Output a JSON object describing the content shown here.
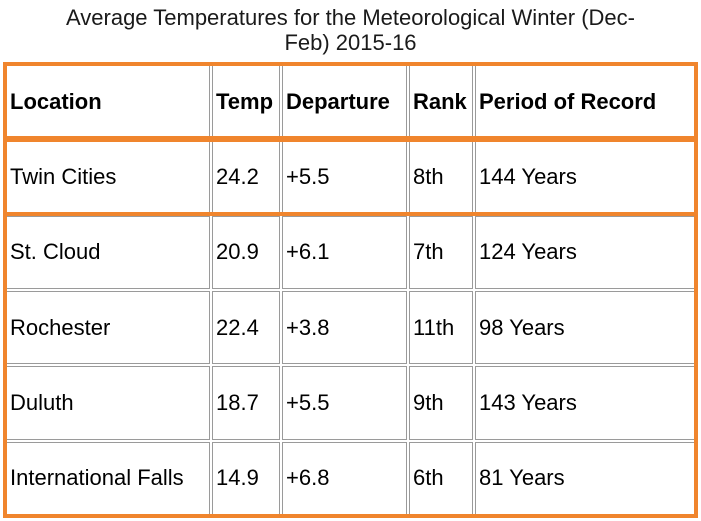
{
  "caption": {
    "line1": "Average Temperatures for the Meteorological Winter (Dec-",
    "line2": "Feb) 2015-16"
  },
  "table": {
    "headers": [
      "Location",
      "Temp",
      "Departure",
      "Rank",
      "Period of Record"
    ],
    "rows": [
      [
        "Twin Cities",
        "24.2",
        "+5.5",
        "8th",
        "144 Years"
      ],
      [
        "St. Cloud",
        "20.9",
        "+6.1",
        "7th",
        "124 Years"
      ],
      [
        "Rochester",
        "22.4",
        "+3.8",
        "11th",
        "98 Years"
      ],
      [
        "Duluth",
        "18.7",
        "+5.5",
        "9th",
        "143 Years"
      ],
      [
        "International Falls",
        "14.9",
        "+6.8",
        "6th",
        "81 Years"
      ]
    ]
  },
  "colors": {
    "highlight": "#f0852d",
    "cell_border": "#9a9a9a"
  }
}
